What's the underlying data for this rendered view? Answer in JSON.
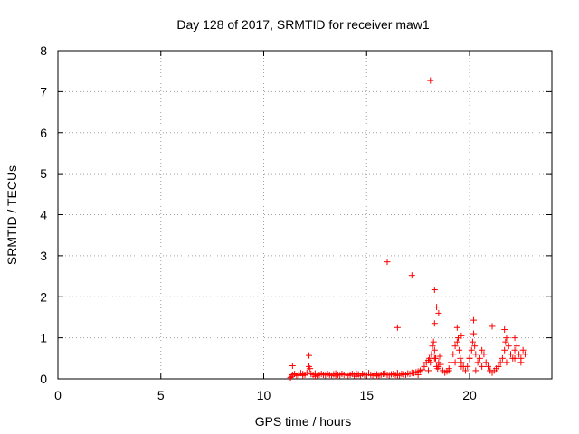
{
  "chart_data": {
    "type": "scatter",
    "title": "Day 128 of 2017, SRMTID for receiver maw1",
    "xlabel": "GPS time / hours",
    "ylabel": "SRMTID / TECUs",
    "xlim": [
      0,
      24
    ],
    "ylim": [
      0,
      8
    ],
    "xticks": [
      0,
      5,
      10,
      15,
      20
    ],
    "yticks": [
      0,
      1,
      2,
      3,
      4,
      5,
      6,
      7,
      8
    ],
    "grid": true,
    "marker": "plus",
    "color": "#ff0000",
    "series": [
      {
        "name": "SRMTID",
        "x": [
          11.3,
          11.35,
          11.4,
          11.5,
          11.6,
          11.7,
          11.8,
          11.9,
          12.0,
          12.1,
          12.2,
          12.25,
          12.3,
          12.4,
          12.5,
          12.6,
          12.7,
          12.8,
          12.9,
          13.0,
          13.1,
          13.2,
          13.3,
          13.4,
          13.5,
          13.6,
          13.7,
          13.8,
          13.9,
          14.0,
          14.1,
          14.2,
          14.3,
          14.4,
          14.5,
          14.6,
          14.7,
          14.8,
          14.9,
          15.0,
          15.1,
          15.2,
          15.3,
          15.4,
          15.5,
          15.6,
          15.7,
          15.8,
          15.9,
          16.0,
          16.1,
          16.2,
          16.3,
          16.4,
          16.5,
          16.6,
          16.7,
          16.8,
          16.9,
          17.0,
          17.1,
          17.2,
          17.3,
          17.4,
          17.5,
          17.6,
          17.7,
          17.8,
          17.9,
          18.0,
          18.05,
          18.1,
          18.15,
          18.2,
          18.25,
          18.3,
          18.35,
          18.4,
          18.45,
          18.5,
          18.55,
          18.6,
          18.7,
          18.8,
          18.9,
          19.0,
          19.1,
          19.2,
          19.3,
          19.4,
          19.45,
          19.5,
          19.55,
          19.6,
          19.7,
          19.8,
          19.9,
          20.0,
          20.1,
          20.15,
          20.2,
          20.25,
          20.3,
          20.4,
          20.5,
          20.6,
          20.7,
          20.8,
          20.9,
          21.0,
          21.1,
          21.2,
          21.3,
          21.4,
          21.5,
          21.6,
          21.7,
          21.75,
          21.8,
          21.9,
          22.0,
          22.1,
          22.2,
          22.3,
          22.4,
          22.5,
          22.6,
          22.7,
          11.9,
          12.5,
          13.5,
          14.5,
          15.5,
          16.5,
          17.5,
          18.0,
          18.3,
          18.5,
          19.0,
          19.3,
          19.6,
          20.0,
          20.3,
          20.6,
          21.0,
          21.4,
          21.8,
          22.2,
          22.5,
          16.0,
          16.5,
          17.2,
          18.1,
          18.3,
          18.4,
          18.5,
          18.3,
          12.2,
          11.4,
          19.4,
          19.6,
          20.2,
          21.1,
          21.7,
          22.2
        ],
        "y": [
          0.03,
          0.06,
          0.1,
          0.12,
          0.08,
          0.1,
          0.14,
          0.12,
          0.1,
          0.15,
          0.3,
          0.25,
          0.12,
          0.1,
          0.13,
          0.08,
          0.1,
          0.12,
          0.1,
          0.09,
          0.12,
          0.1,
          0.08,
          0.11,
          0.13,
          0.1,
          0.09,
          0.12,
          0.1,
          0.11,
          0.08,
          0.1,
          0.12,
          0.09,
          0.13,
          0.11,
          0.08,
          0.12,
          0.1,
          0.09,
          0.14,
          0.1,
          0.08,
          0.12,
          0.11,
          0.09,
          0.1,
          0.12,
          0.13,
          0.1,
          0.09,
          0.11,
          0.12,
          0.1,
          0.14,
          0.09,
          0.12,
          0.11,
          0.1,
          0.13,
          0.12,
          0.15,
          0.14,
          0.16,
          0.18,
          0.2,
          0.22,
          0.3,
          0.4,
          0.45,
          0.5,
          0.4,
          0.6,
          0.8,
          0.9,
          0.7,
          0.5,
          0.3,
          0.25,
          0.4,
          0.55,
          0.35,
          0.2,
          0.15,
          0.18,
          0.25,
          0.4,
          0.6,
          0.8,
          0.9,
          1.0,
          0.7,
          0.5,
          0.4,
          0.3,
          0.2,
          0.3,
          0.5,
          0.7,
          0.9,
          1.1,
          0.8,
          0.6,
          0.4,
          0.5,
          0.7,
          0.6,
          0.4,
          0.3,
          0.2,
          0.15,
          0.2,
          0.25,
          0.3,
          0.4,
          0.5,
          0.7,
          0.9,
          1.0,
          0.8,
          0.6,
          0.5,
          0.7,
          0.8,
          0.6,
          0.5,
          0.7,
          0.6,
          0.08,
          0.06,
          0.07,
          0.06,
          0.07,
          0.08,
          0.1,
          0.2,
          0.5,
          0.3,
          0.2,
          0.4,
          0.3,
          0.5,
          0.2,
          0.3,
          0.2,
          0.3,
          0.4,
          0.5,
          0.4,
          2.85,
          1.25,
          2.52,
          7.27,
          2.17,
          1.75,
          1.6,
          1.35,
          0.57,
          0.32,
          1.25,
          1.05,
          1.43,
          1.28,
          1.2,
          1.0
        ]
      }
    ]
  }
}
